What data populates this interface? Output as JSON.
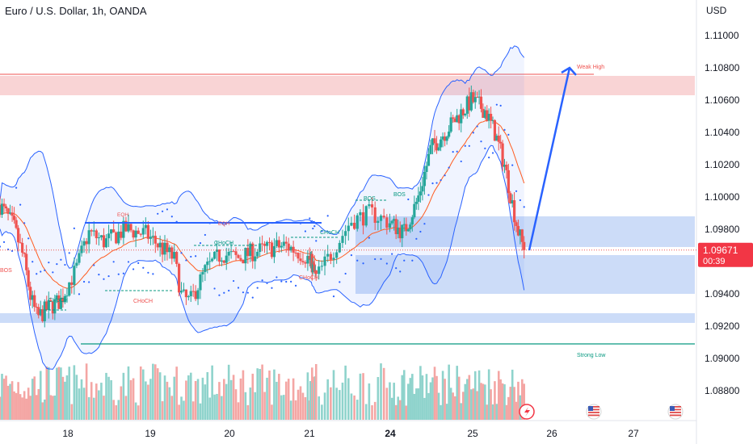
{
  "header": {
    "title": "Euro / U.S. Dollar, 1h, OANDA",
    "currency": "USD"
  },
  "price_tag": {
    "price": "1.09671",
    "countdown": "00:39",
    "color": "#f23645"
  },
  "annotations": {
    "weak_high": "Weak High",
    "strong_low": "Strong Low",
    "bos": "BOS",
    "choch": "CHoCH",
    "eqh": "EQH"
  },
  "icons": {
    "flash": "lightning-icon",
    "flag": "us-flag-icon"
  },
  "colors": {
    "up": "#26a69a",
    "down": "#ef5350",
    "blue_line": "#2962ff",
    "zone_red": "#f7c5c7",
    "zone_blue": "#bbd0f5",
    "bb_line": "#2962ff",
    "ema": "#ff5b1f"
  },
  "chart_data": {
    "type": "candlestick",
    "title": "Euro / U.S. Dollar, 1h, OANDA",
    "y_axis": {
      "label": "USD",
      "ticks": [
        1.11,
        1.108,
        1.106,
        1.104,
        1.102,
        1.1,
        1.098,
        1.094,
        1.092,
        1.09,
        1.088
      ],
      "tick_labels": [
        "1.11000",
        "1.10800",
        "1.10600",
        "1.10400",
        "1.10200",
        "1.10000",
        "1.09800",
        "1.09400",
        "1.09200",
        "1.09000",
        "1.08800"
      ],
      "range": [
        1.0866,
        1.1126
      ]
    },
    "x_axis": {
      "tick_labels": [
        "18",
        "19",
        "20",
        "21",
        "24",
        "25",
        "26",
        "27"
      ],
      "bold": "24"
    },
    "close_path": [
      [
        17.0,
        1.0995
      ],
      [
        17.2,
        1.0982
      ],
      [
        17.35,
        1.0962
      ],
      [
        17.45,
        1.0938
      ],
      [
        17.55,
        1.0925
      ],
      [
        17.7,
        1.0931
      ],
      [
        17.9,
        1.0936
      ],
      [
        18.1,
        1.0955
      ],
      [
        18.25,
        1.0978
      ],
      [
        18.45,
        1.0972
      ],
      [
        18.7,
        1.098
      ],
      [
        18.95,
        1.0977
      ],
      [
        19.15,
        1.0968
      ],
      [
        19.3,
        1.0962
      ],
      [
        19.4,
        1.0938
      ],
      [
        19.5,
        1.0935
      ],
      [
        19.7,
        1.0955
      ],
      [
        19.9,
        1.0965
      ],
      [
        20.1,
        1.0962
      ],
      [
        20.3,
        1.0966
      ],
      [
        20.5,
        1.0968
      ],
      [
        20.7,
        1.097
      ],
      [
        20.9,
        1.0965
      ],
      [
        21.1,
        1.0958
      ],
      [
        21.25,
        1.095
      ],
      [
        21.45,
        1.097
      ],
      [
        21.6,
        1.0985
      ],
      [
        21.8,
        1.099
      ],
      [
        22.0,
        1.0984
      ],
      [
        22.2,
        1.0978
      ],
      [
        22.4,
        1.0998
      ],
      [
        22.6,
        1.103
      ],
      [
        22.8,
        1.104
      ],
      [
        23.0,
        1.105
      ],
      [
        23.2,
        1.106
      ],
      [
        23.4,
        1.1054
      ],
      [
        23.55,
        1.104
      ],
      [
        23.7,
        1.102
      ],
      [
        23.8,
        1.1
      ],
      [
        23.9,
        1.098
      ],
      [
        24.0,
        1.0967
      ]
    ],
    "levels": {
      "weak_high": 1.1076,
      "strong_low": 1.0909,
      "eqh": 1.0984
    },
    "zones": [
      {
        "kind": "supply",
        "from": 1.1063,
        "to": 1.1075
      },
      {
        "kind": "demand",
        "from": 1.0969,
        "to": 1.0988
      },
      {
        "kind": "demand",
        "from": 1.094,
        "to": 1.0964
      },
      {
        "kind": "demand",
        "from": 1.0922,
        "to": 1.0928
      }
    ],
    "projection": {
      "from": 1.0967,
      "to": 1.108
    },
    "last_price": 1.09671
  }
}
